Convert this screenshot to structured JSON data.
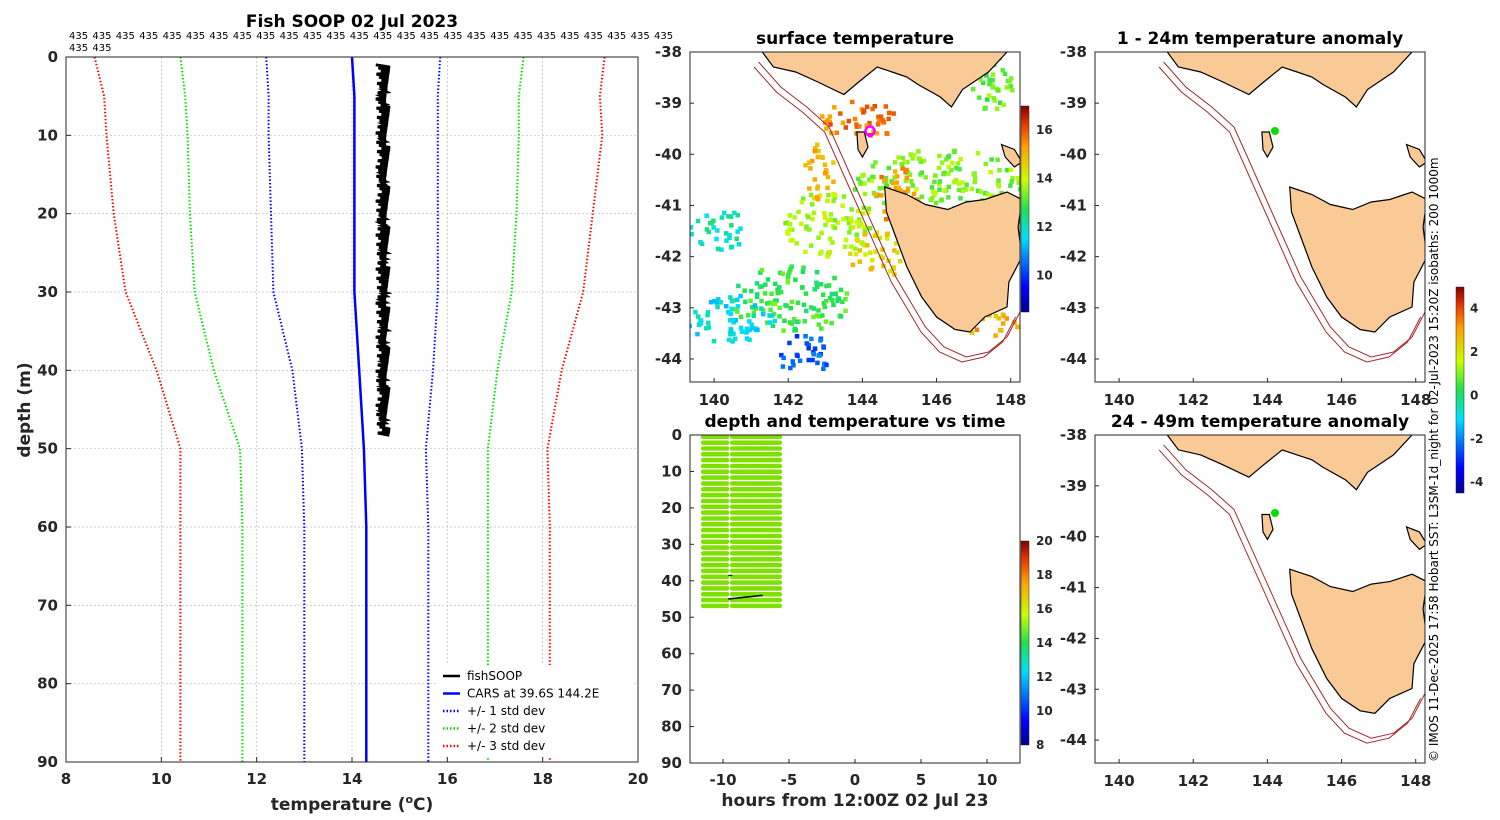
{
  "chart_data": [
    {
      "type": "line",
      "title": "Fish SOOP 02 Jul 2023",
      "xlabel": "temperature (",
      "xlabel_sup": "o",
      "xlabel_unit": "C)",
      "ylabel": "depth (m)",
      "xlim": [
        8,
        20
      ],
      "ylim": [
        90,
        0
      ],
      "xticks": [
        "8",
        "10",
        "12",
        "14",
        "16",
        "18",
        "20"
      ],
      "yticks": [
        "0",
        "10",
        "20",
        "30",
        "40",
        "50",
        "60",
        "70",
        "80",
        "90"
      ],
      "count_labels": [
        "435",
        "435",
        "435",
        "435",
        "435",
        "435",
        "435",
        "435",
        "435",
        "435",
        "435",
        "435",
        "435",
        "435",
        "435",
        "435",
        "435",
        "435",
        "435",
        "435",
        "435",
        "435",
        "435",
        "435",
        "435",
        "435"
      ],
      "count_labels_row2": [
        "435",
        "435"
      ],
      "depth_profile": [
        0,
        5,
        10,
        20,
        30,
        40,
        50,
        60,
        70,
        80,
        90
      ],
      "series": [
        {
          "name": "+/- 3 std dev",
          "color": "#ff0000",
          "style": "dotted",
          "lower": [
            8.6,
            8.8,
            8.85,
            9.0,
            9.25,
            9.9,
            10.4,
            10.4,
            10.4,
            10.4,
            10.4
          ],
          "upper": [
            19.3,
            19.2,
            19.25,
            19.05,
            18.85,
            18.4,
            18.1,
            18.15,
            18.15,
            18.15,
            18.15
          ]
        },
        {
          "name": "+/- 2 std dev",
          "color": "#00dd00",
          "style": "dotted",
          "lower": [
            10.4,
            10.5,
            10.55,
            10.6,
            10.7,
            11.1,
            11.65,
            11.7,
            11.7,
            11.7,
            11.7
          ],
          "upper": [
            17.6,
            17.5,
            17.5,
            17.45,
            17.35,
            17.05,
            16.85,
            16.85,
            16.85,
            16.85,
            16.85
          ]
        },
        {
          "name": "+/- 1 std dev",
          "color": "#0000ff",
          "style": "dotted",
          "lower": [
            12.2,
            12.25,
            12.25,
            12.3,
            12.35,
            12.75,
            12.95,
            13.0,
            13.0,
            13.0,
            13.0
          ],
          "upper": [
            15.85,
            15.8,
            15.8,
            15.8,
            15.8,
            15.7,
            15.55,
            15.6,
            15.6,
            15.6,
            15.6
          ]
        },
        {
          "name": "CARS at 39.6S 144.2E",
          "color": "#0000ff",
          "style": "solid",
          "values": [
            14.0,
            14.05,
            14.05,
            14.05,
            14.05,
            14.15,
            14.25,
            14.3,
            14.3,
            14.3,
            14.3
          ]
        },
        {
          "name": "fishSOOP",
          "color": "#000000",
          "style": "solid",
          "depth": [
            1,
            48
          ],
          "temp_range": [
            14.5,
            14.8
          ]
        }
      ],
      "legend": [
        "fishSOOP",
        "CARS at 39.6S 144.2E",
        "+/- 1 std dev",
        "+/- 2 std dev",
        "+/- 3 std dev"
      ],
      "legend_position": "bottom-right"
    },
    {
      "type": "heatmap",
      "title": "surface temperature",
      "xticks": [
        "140",
        "142",
        "144",
        "146",
        "148"
      ],
      "yticks": [
        "-38",
        "-39",
        "-40",
        "-41",
        "-42",
        "-43",
        "-44"
      ],
      "colorbar_ticks": [
        "10",
        "12",
        "14",
        "16"
      ],
      "colorbar_range": [
        8.5,
        17
      ]
    },
    {
      "type": "scatter",
      "title": "depth and temperature vs time",
      "xlabel": "hours from 12:00Z 02 Jul 23",
      "xticks": [
        "-10",
        "-5",
        "0",
        "5",
        "10"
      ],
      "yticks": [
        "0",
        "10",
        "20",
        "30",
        "40",
        "50",
        "60",
        "70",
        "80",
        "90"
      ],
      "xlim": [
        -12.5,
        12.5
      ],
      "ylim": [
        90,
        0
      ],
      "colorbar_ticks": [
        "8",
        "10",
        "12",
        "14",
        "16",
        "18",
        "20"
      ],
      "colorbar_range": [
        8,
        20
      ],
      "casts": [
        {
          "hours": [
            -11.5,
            -9.6
          ],
          "depth": [
            0,
            48
          ],
          "temp": 14.6
        },
        {
          "hours": [
            -9.3,
            -5.6
          ],
          "depth": [
            0,
            48
          ],
          "temp": 14.6
        }
      ]
    },
    {
      "type": "map",
      "title": "1 - 24m temperature anomaly",
      "xticks": [
        "140",
        "142",
        "144",
        "146",
        "148"
      ],
      "yticks": [
        "-38",
        "-39",
        "-40",
        "-41",
        "-42",
        "-43",
        "-44"
      ],
      "marker": {
        "lon": 144.2,
        "lat": -39.6,
        "color": "#00e000"
      }
    },
    {
      "type": "map",
      "title": "24 - 49m temperature anomaly",
      "xticks": [
        "140",
        "142",
        "144",
        "146",
        "148"
      ],
      "yticks": [
        "-38",
        "-39",
        "-40",
        "-41",
        "-42",
        "-43",
        "-44"
      ],
      "marker": {
        "lon": 144.2,
        "lat": -39.6,
        "color": "#00e000"
      },
      "colorbar_ticks": [
        "4",
        "2",
        "0",
        "-2",
        "-4"
      ],
      "colorbar_range": [
        -4.5,
        5
      ]
    }
  ],
  "credit": "© IMOS 11-Dec-2025 17:58 Hobart SST: L3SM-1d_night for 02-Jul-2023 15:20Z isobaths: 200  1000m",
  "colors": {
    "land": "#f9c996",
    "isobath": "#a52a2a",
    "coast": "#000000"
  }
}
